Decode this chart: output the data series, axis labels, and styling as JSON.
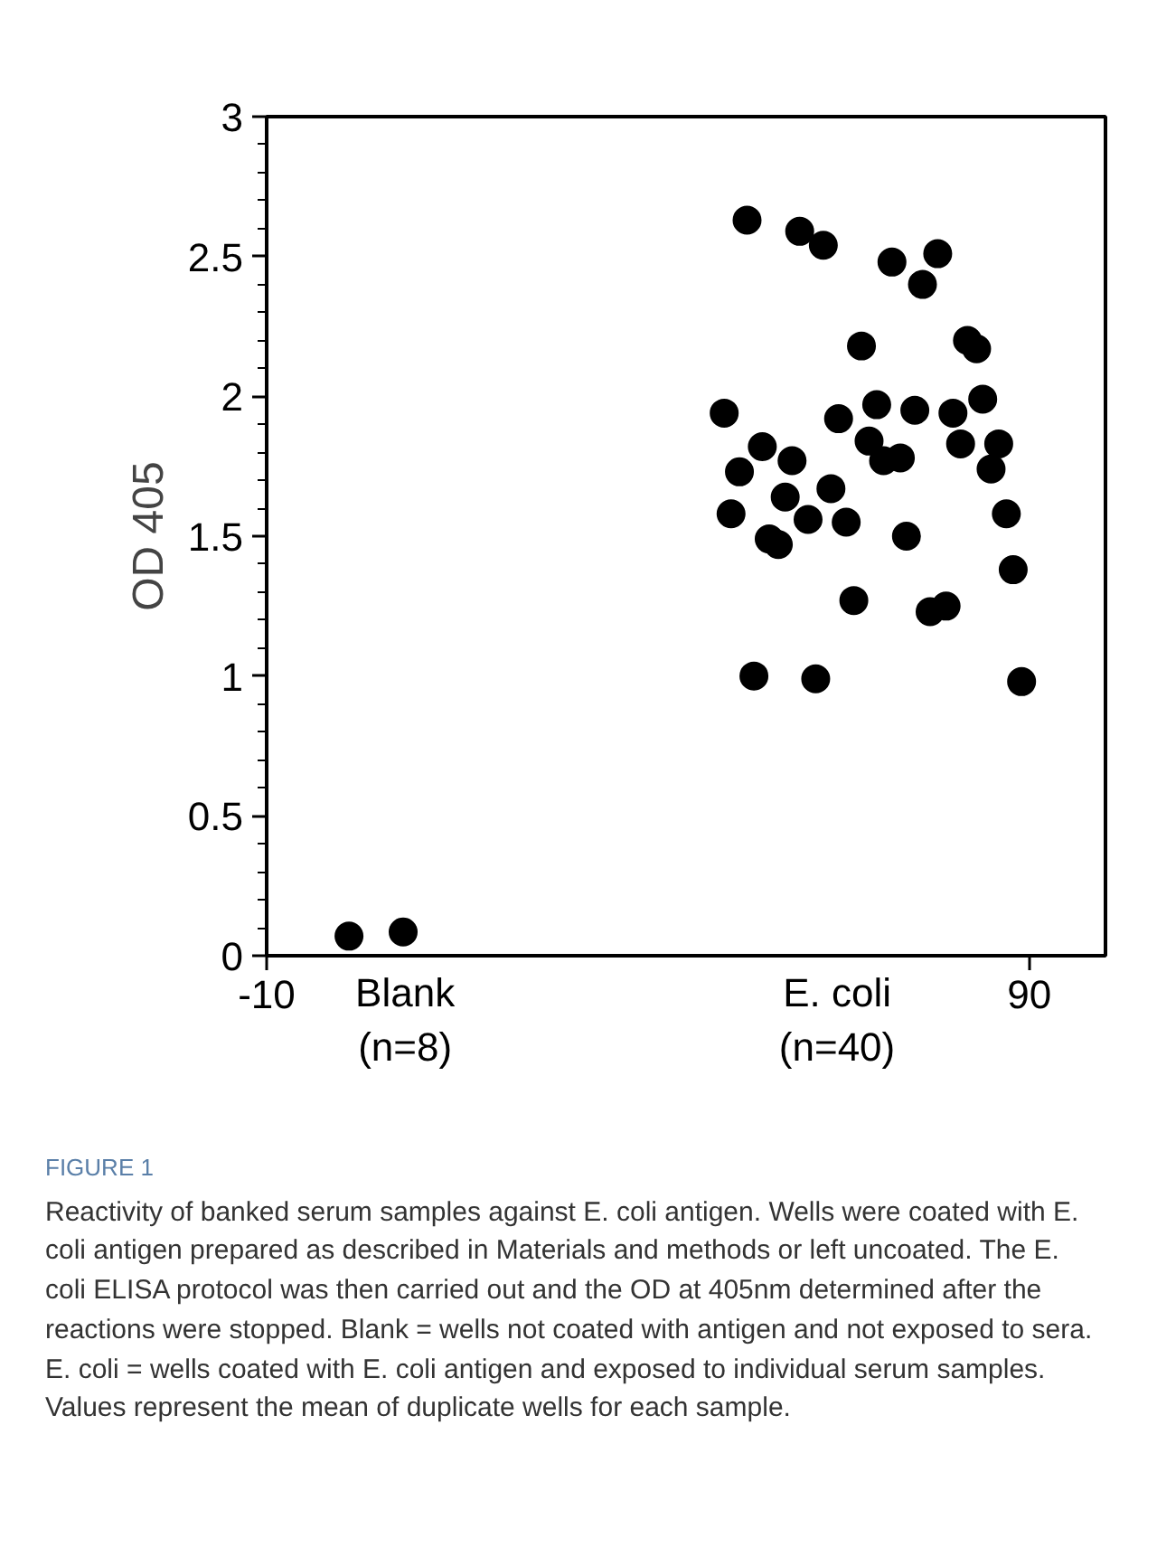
{
  "chart_data": {
    "type": "scatter",
    "ylabel": "OD 405",
    "xlim": [
      -10,
      100
    ],
    "ylim": [
      0,
      3
    ],
    "xticks": [
      -10,
      90
    ],
    "yticks": [
      0,
      0.5,
      1,
      1.5,
      2,
      2.5,
      3
    ],
    "grid": false,
    "marker": "circle",
    "series": [
      {
        "color": "#000000",
        "x": [
          0.8,
          1.8,
          2.8,
          3.8,
          4.9,
          5.9,
          6.9,
          7.9
        ],
        "values": [
          0.07,
          null,
          null,
          null,
          null,
          null,
          null,
          0.085
        ]
      },
      {
        "color": "#000000",
        "x": [
          53.0,
          59.9,
          63.0,
          72.0,
          78.0,
          76.0,
          68.0,
          81.9,
          83.1,
          50.0,
          70.0,
          75.0,
          65.0,
          80.0,
          83.9,
          55.0,
          69.0,
          81.0,
          86.0,
          52.0,
          58.9,
          70.9,
          73.1,
          85.0,
          58.0,
          64.0,
          50.9,
          61.0,
          66.0,
          87.0,
          55.9,
          57.1,
          73.9,
          87.9,
          67.0,
          77.0,
          79.1,
          53.9,
          62.0,
          89.0
        ],
        "values": [
          2.63,
          2.59,
          2.54,
          2.48,
          2.51,
          2.4,
          2.18,
          2.2,
          2.17,
          1.94,
          1.97,
          1.95,
          1.92,
          1.94,
          1.99,
          1.82,
          1.84,
          1.83,
          1.83,
          1.73,
          1.77,
          1.77,
          1.78,
          1.74,
          1.64,
          1.67,
          1.58,
          1.56,
          1.55,
          1.58,
          1.49,
          1.47,
          1.5,
          1.38,
          1.27,
          1.23,
          1.25,
          1.0,
          0.99,
          0.98
        ]
      }
    ],
    "annotations": [
      "Blank\n(n=8)",
      "E. coli\n(n=40)",
      "FIGURE 1",
      "Reactivity of banked serum samples against E. coli antigen. Wells were coated with E. coli antigen prepared as described in Materials and methods or left uncoated. The E. coli ELISA protocol was then carried out and the OD at 405nm determined after the reactions were stopped. Blank = wells not coated with antigen and not exposed to sera. E. coli = wells coated with E. coli antigen and exposed to individual serum samples. Values represent the mean of duplicate wells for each sample."
    ]
  }
}
